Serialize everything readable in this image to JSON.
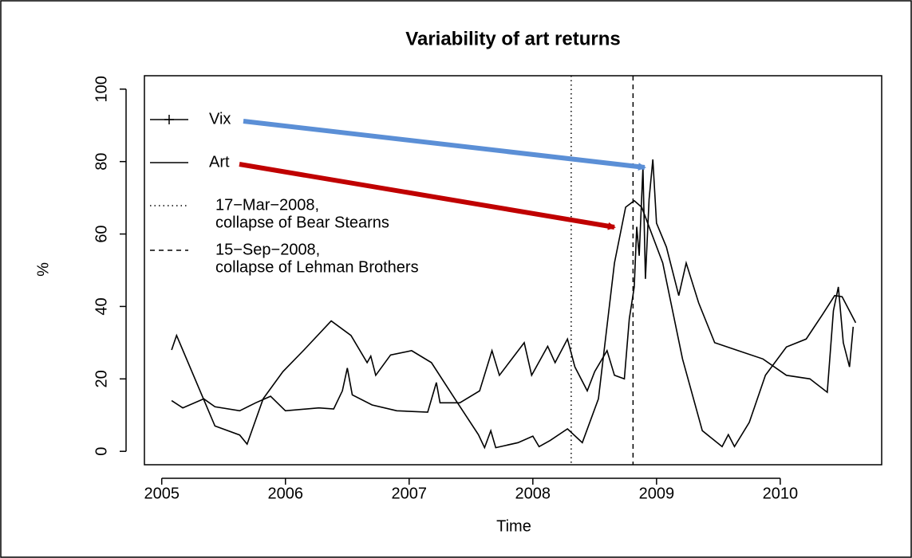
{
  "chart_data": {
    "type": "line",
    "title": "Variability of art returns",
    "xlabel": "Time",
    "ylabel": "%",
    "xlim": [
      2004.86,
      2010.82
    ],
    "ylim": [
      -3.7,
      103.7
    ],
    "xticks": [
      2005,
      2006,
      2007,
      2008,
      2009,
      2010
    ],
    "yticks": [
      0,
      20,
      40,
      60,
      80,
      100
    ],
    "series": [
      {
        "name": "Vix",
        "color": "#000000",
        "x": [
          2005.08,
          2005.17,
          2005.34,
          2005.43,
          2005.63,
          2005.76,
          2005.88,
          2006.0,
          2006.27,
          2006.39,
          2006.46,
          2006.5,
          2006.54,
          2006.7,
          2006.9,
          2007.15,
          2007.22,
          2007.25,
          2007.41,
          2007.57,
          2007.67,
          2007.73,
          2007.93,
          2007.99,
          2008.12,
          2008.18,
          2008.28,
          2008.34,
          2008.44,
          2008.5,
          2008.6,
          2008.66,
          2008.74,
          2008.78,
          2008.82,
          2008.84,
          2008.86,
          2008.89,
          2008.91,
          2008.94,
          2008.97,
          2009.0,
          2009.08,
          2009.18,
          2009.24,
          2009.34,
          2009.47,
          2009.66,
          2009.86,
          2010.05,
          2010.24,
          2010.38,
          2010.43,
          2010.47,
          2010.51,
          2010.56,
          2010.59
        ],
        "values": [
          14,
          12,
          14.5,
          12.3,
          11.2,
          13.4,
          15.2,
          11.2,
          12,
          11.7,
          16.7,
          23,
          15.6,
          12.8,
          11.2,
          10.8,
          19,
          13.4,
          13.4,
          16.7,
          27.8,
          21,
          30,
          21,
          29,
          24.5,
          31,
          23.3,
          16.7,
          22,
          27.8,
          21,
          20,
          36.6,
          45.4,
          62,
          54,
          78.4,
          47.6,
          69.6,
          80.6,
          63,
          56.4,
          43,
          52,
          41,
          30,
          27.8,
          25.5,
          21,
          20,
          16.3,
          38.8,
          45.4,
          30,
          23.3,
          34.4
        ]
      },
      {
        "name": "Art",
        "color": "#000000",
        "x": [
          2005.08,
          2005.12,
          2005.43,
          2005.63,
          2005.69,
          2005.82,
          2005.98,
          2006.15,
          2006.37,
          2006.53,
          2006.66,
          2006.69,
          2006.73,
          2006.85,
          2007.02,
          2007.18,
          2007.37,
          2007.56,
          2007.61,
          2007.66,
          2007.7,
          2007.88,
          2008.0,
          2008.05,
          2008.14,
          2008.28,
          2008.4,
          2008.53,
          2008.66,
          2008.75,
          2008.82,
          2008.88,
          2009.05,
          2009.21,
          2009.37,
          2009.53,
          2009.58,
          2009.63,
          2009.75,
          2009.88,
          2010.05,
          2010.21,
          2010.34,
          2010.44,
          2010.5,
          2010.61
        ],
        "values": [
          28,
          32,
          7,
          4.5,
          2,
          14.5,
          22,
          28,
          36,
          32,
          24.5,
          26.3,
          21,
          26.6,
          27.8,
          24.5,
          14.5,
          4.6,
          1,
          5.7,
          1,
          2.4,
          4.2,
          1.3,
          3,
          6.2,
          2.4,
          14.5,
          52,
          67.4,
          69.2,
          67.4,
          52,
          25.5,
          5.7,
          1.3,
          4.6,
          1.3,
          8,
          21,
          28.8,
          31,
          37.7,
          43,
          42.7,
          35.5
        ]
      }
    ],
    "vlines": [
      {
        "x": 2008.31,
        "style": "dotted",
        "label": [
          "17−Mar−2008,",
          "collapse of Bear Stearns"
        ]
      },
      {
        "x": 2008.81,
        "style": "dashed",
        "label": [
          "15−Sep−2008,",
          "collapse of Lehman Brothers"
        ]
      }
    ]
  }
}
